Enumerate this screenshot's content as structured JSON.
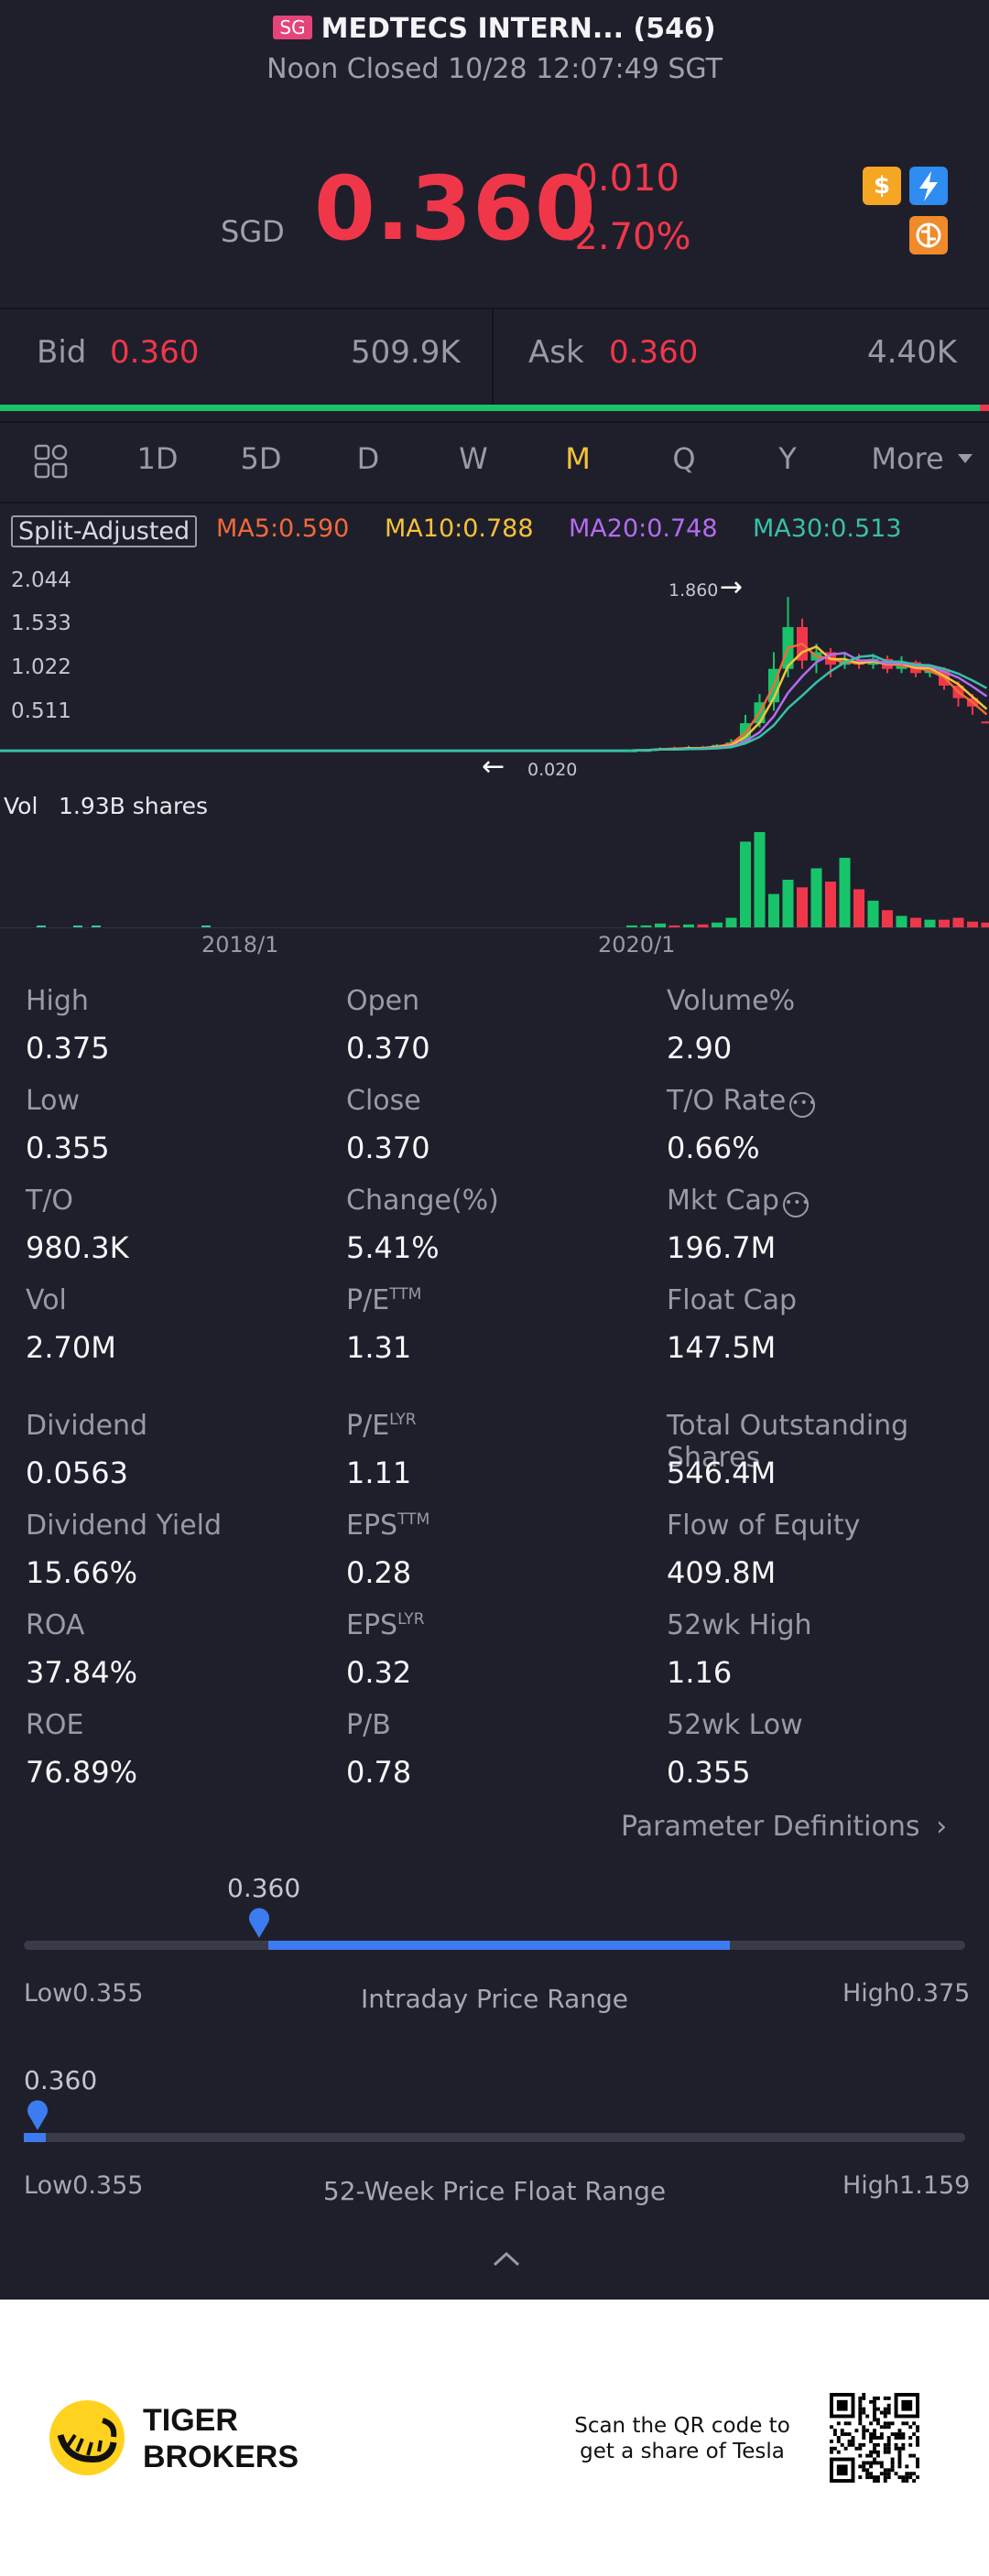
{
  "header": {
    "market_badge": "SG",
    "title": "MEDTECS INTERN... (546)",
    "status": "Noon Closed 10/28 12:07:49 SGT"
  },
  "quote": {
    "currency": "SGD",
    "price": "0.360",
    "change": "-0.010",
    "change_pct": "-2.70%",
    "icons": [
      "dollar-icon",
      "lightning-icon",
      "brain-icon"
    ]
  },
  "bidask": {
    "bid_label": "Bid",
    "bid_price": "0.360",
    "bid_size": "509.9K",
    "ask_label": "Ask",
    "ask_price": "0.360",
    "ask_size": "4.40K",
    "bid_share": 0.99
  },
  "periods": {
    "items": [
      "1D",
      "5D",
      "D",
      "W",
      "M",
      "Q",
      "Y",
      "More"
    ],
    "active": "M"
  },
  "chart": {
    "split_label": "Split-Adjusted",
    "ma": [
      {
        "label": "MA5:0.590",
        "color": "#f06a3a"
      },
      {
        "label": "MA10:0.788",
        "color": "#f5c23a"
      },
      {
        "label": "MA20:0.748",
        "color": "#b36cf0"
      },
      {
        "label": "MA30:0.513",
        "color": "#38c0a8"
      }
    ],
    "y_ticks": [
      "2.044",
      "1.533",
      "1.022",
      "0.511"
    ],
    "high_marker": "1.860",
    "low_marker": "0.020",
    "vol_label": "Vol",
    "vol_value": "1.93B shares",
    "x_ticks": [
      "2018/1",
      "2020/1"
    ]
  },
  "chart_data": {
    "type": "candlestick",
    "title": "",
    "x_ticks": [
      "2018/1",
      "2020/1"
    ],
    "y_ticks": [
      2.044,
      1.533,
      1.022,
      0.511
    ],
    "ylim": [
      0,
      2.3
    ],
    "volume_label": "Vol 1.93B shares",
    "annotations": [
      {
        "label": "1.860",
        "kind": "high"
      },
      {
        "label": "0.020",
        "kind": "low"
      }
    ],
    "candles": [
      {
        "open": 0.02,
        "close": 0.025,
        "high": 0.03,
        "low": 0.02
      },
      {
        "open": 0.025,
        "close": 0.03,
        "high": 0.04,
        "low": 0.02
      },
      {
        "open": 0.03,
        "close": 0.05,
        "high": 0.06,
        "low": 0.025
      },
      {
        "open": 0.05,
        "close": 0.04,
        "high": 0.07,
        "low": 0.03
      },
      {
        "open": 0.04,
        "close": 0.06,
        "high": 0.08,
        "low": 0.03
      },
      {
        "open": 0.06,
        "close": 0.05,
        "high": 0.08,
        "low": 0.04
      },
      {
        "open": 0.05,
        "close": 0.09,
        "high": 0.1,
        "low": 0.04
      },
      {
        "open": 0.09,
        "close": 0.12,
        "high": 0.16,
        "low": 0.08
      },
      {
        "open": 0.12,
        "close": 0.35,
        "high": 0.45,
        "low": 0.1
      },
      {
        "open": 0.35,
        "close": 0.6,
        "high": 0.7,
        "low": 0.3
      },
      {
        "open": 0.6,
        "close": 1.0,
        "high": 1.2,
        "low": 0.5
      },
      {
        "open": 1.0,
        "close": 1.5,
        "high": 1.86,
        "low": 0.9
      },
      {
        "open": 1.5,
        "close": 1.1,
        "high": 1.6,
        "low": 1.0
      },
      {
        "open": 1.1,
        "close": 1.2,
        "high": 1.3,
        "low": 0.95
      },
      {
        "open": 1.2,
        "close": 1.05,
        "high": 1.25,
        "low": 0.9
      },
      {
        "open": 1.05,
        "close": 1.1,
        "high": 1.2,
        "low": 1.0
      },
      {
        "open": 1.1,
        "close": 1.05,
        "high": 1.18,
        "low": 1.0
      },
      {
        "open": 1.05,
        "close": 1.12,
        "high": 1.18,
        "low": 1.0
      },
      {
        "open": 1.12,
        "close": 1.0,
        "high": 1.16,
        "low": 0.95
      },
      {
        "open": 1.0,
        "close": 1.08,
        "high": 1.15,
        "low": 0.95
      },
      {
        "open": 1.08,
        "close": 0.95,
        "high": 1.1,
        "low": 0.9
      },
      {
        "open": 0.95,
        "close": 1.0,
        "high": 1.05,
        "low": 0.9
      },
      {
        "open": 1.0,
        "close": 0.8,
        "high": 1.02,
        "low": 0.75
      },
      {
        "open": 0.8,
        "close": 0.65,
        "high": 0.85,
        "low": 0.55
      },
      {
        "open": 0.65,
        "close": 0.55,
        "high": 0.7,
        "low": 0.45
      },
      {
        "open": 0.37,
        "close": 0.36,
        "high": 0.375,
        "low": 0.355
      }
    ],
    "volumes_relative": [
      0.02,
      0.02,
      0.04,
      0.02,
      0.03,
      0.03,
      0.05,
      0.1,
      0.9,
      1.0,
      0.35,
      0.5,
      0.42,
      0.62,
      0.48,
      0.73,
      0.4,
      0.28,
      0.18,
      0.12,
      0.1,
      0.08,
      0.08,
      0.1,
      0.06,
      0.05
    ]
  },
  "stats": [
    {
      "label": "High",
      "value": "0.375"
    },
    {
      "label": "Open",
      "value": "0.370"
    },
    {
      "label": "Volume%",
      "value": "2.90"
    },
    {
      "label": "Low",
      "value": "0.355"
    },
    {
      "label": "Close",
      "value": "0.370"
    },
    {
      "label": "T/O Rate",
      "value": "0.66%",
      "info": true
    },
    {
      "label": "T/O",
      "value": "980.3K"
    },
    {
      "label": "Change(%)",
      "value": "5.41%"
    },
    {
      "label": "Mkt Cap",
      "value": "196.7M",
      "info": true
    },
    {
      "label": "Vol",
      "value": "2.70M"
    },
    {
      "label": "P/E",
      "sup": "TTM",
      "value": "1.31"
    },
    {
      "label": "Float Cap",
      "value": "147.5M"
    },
    {
      "label": "Dividend",
      "value": "0.0563"
    },
    {
      "label": "P/E",
      "sup": "LYR",
      "value": "1.11"
    },
    {
      "label": "Total Outstanding Shares",
      "value": "546.4M"
    },
    {
      "label": "Dividend Yield",
      "value": "15.66%"
    },
    {
      "label": "EPS",
      "sup": "TTM",
      "value": "0.28"
    },
    {
      "label": "Flow of Equity",
      "value": "409.8M"
    },
    {
      "label": "ROA",
      "value": "37.84%"
    },
    {
      "label": "EPS",
      "sup": "LYR",
      "value": "0.32"
    },
    {
      "label": "52wk High",
      "value": "1.16"
    },
    {
      "label": "ROE",
      "value": "76.89%"
    },
    {
      "label": "P/B",
      "value": "0.78"
    },
    {
      "label": "52wk Low",
      "value": "0.355"
    }
  ],
  "param_link": "Parameter Definitions",
  "intraday_range": {
    "current": "0.360",
    "low": "Low0.355",
    "high": "High0.375",
    "label": "Intraday Price Range",
    "position": 0.25,
    "fill_end": 0.75
  },
  "week52_range": {
    "current": "0.360",
    "low": "Low0.355",
    "high": "High1.159",
    "label": "52-Week Price Float Range",
    "position": 0.006
  },
  "footer": {
    "brand_line1": "TIGER",
    "brand_line2": "BROKERS",
    "promo_line1": "Scan the QR code to",
    "promo_line2": "get a share of Tesla"
  }
}
